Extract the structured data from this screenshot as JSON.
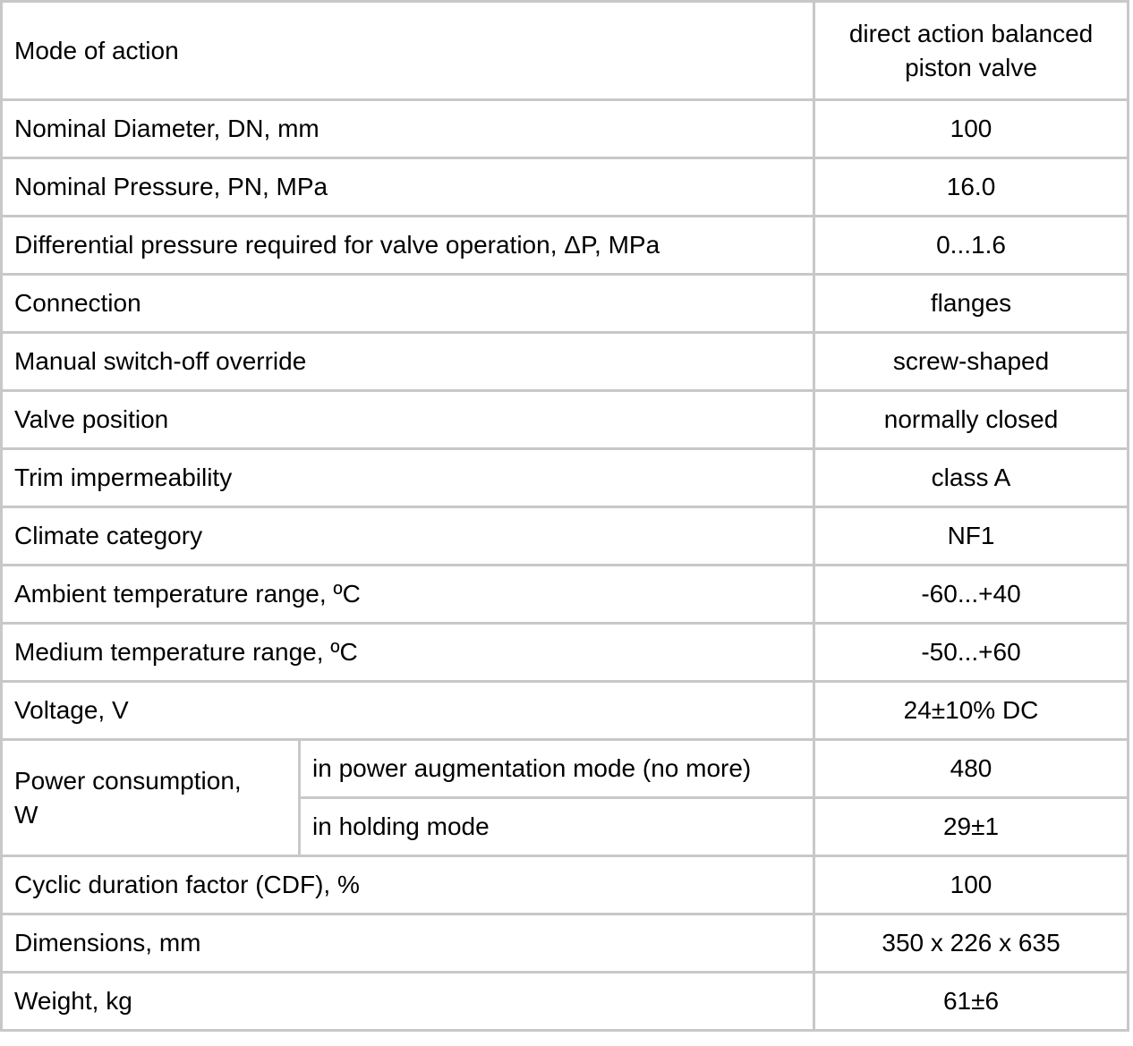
{
  "theme": {
    "border_color": "#c8c8c8",
    "text_color": "#000000",
    "background_color": "#ffffff"
  },
  "table": {
    "rows": [
      {
        "label": "Mode of action",
        "value": "direct action balanced piston valve"
      },
      {
        "label": "Nominal Diameter, DN, mm",
        "value": "100"
      },
      {
        "label": "Nominal Pressure, PN, MPa",
        "value": "16.0"
      },
      {
        "label": "Differential pressure required for valve operation, ΔP, MPa",
        "value": "0...1.6"
      },
      {
        "label": "Connection",
        "value": "flanges"
      },
      {
        "label": "Manual switch-off override",
        "value": "screw-shaped"
      },
      {
        "label": "Valve position",
        "value": "normally closed"
      },
      {
        "label": "Trim impermeability",
        "value": "class A"
      },
      {
        "label": "Climate category",
        "value": "NF1"
      },
      {
        "label": "Ambient temperature range, ºC",
        "value": "-60...+40"
      },
      {
        "label": "Medium temperature range, ºC",
        "value": "-50...+60"
      },
      {
        "label": "Voltage, V",
        "value": "24±10% DC"
      },
      {
        "label": "Cyclic duration factor (CDF), %",
        "value": "100"
      },
      {
        "label": "Dimensions, mm",
        "value": "350 x 226 x 635"
      },
      {
        "label": "Weight, kg",
        "value": "61±6"
      }
    ],
    "power_group": {
      "label": "Power consumption, W",
      "sub_rows": [
        {
          "label": "in power augmentation mode (no more)",
          "value": "480"
        },
        {
          "label": "in holding mode",
          "value": "29±1"
        }
      ]
    }
  }
}
